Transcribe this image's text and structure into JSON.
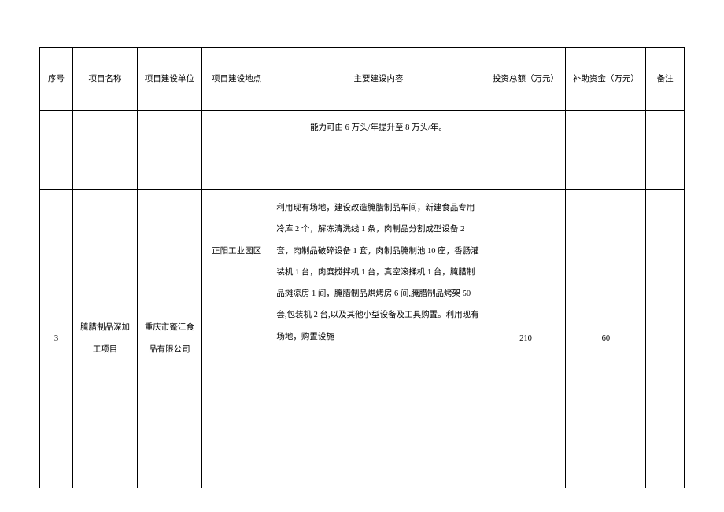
{
  "table": {
    "headers": {
      "seq": "序号",
      "name": "项目名称",
      "unit": "项目建设单位",
      "location": "项目建设地点",
      "content": "主要建设内容",
      "invest": "投资总额（万元）",
      "subsidy": "补助资金（万元）",
      "remark": "备注"
    },
    "partial_row": {
      "content": "能力可由 6 万头/年提升至 8 万头/年。"
    },
    "row3": {
      "seq": "3",
      "name": "腌腊制品深加工项目",
      "unit": "重庆市蓬江食品有限公司",
      "location": "正阳工业园区",
      "content": "利用现有场地，建设改造腌腊制品车间，新建食品专用冷库 2 个，解冻清洗线 1 条，肉制品分割成型设备 2 套，肉制品破碎设备 1 套，肉制品腌制池 10 座，香肠灌装机 1 台，肉糜搅拌机 1 台，真空滚揉机 1 台，腌腊制品摊凉房 1 间，腌腊制品烘烤房 6 间,腌腊制品烤架 50 套,包装机 2 台,以及其他小型设备及工具购置。利用现有场地，购置设施",
      "invest": "210",
      "subsidy": "60",
      "remark": ""
    },
    "columns": {
      "seq_width": 38,
      "name_width": 74,
      "unit_width": 74,
      "location_width": 80,
      "content_width": 246,
      "invest_width": 92,
      "subsidy_width": 92,
      "remark_width": 44
    },
    "styling": {
      "border_color": "#000000",
      "background_color": "#ffffff",
      "text_color": "#000000",
      "font_size": 10.5,
      "line_height": 2.6,
      "font_family": "SimSun"
    }
  }
}
